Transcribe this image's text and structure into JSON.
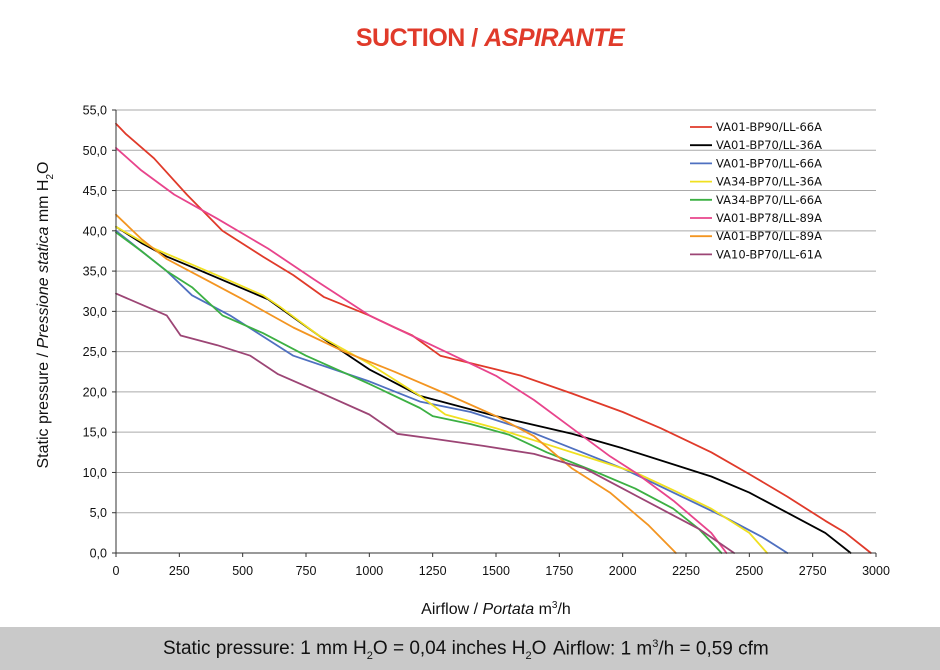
{
  "title": {
    "main": "SUCTION",
    "sep": " / ",
    "italic": "ASPIRANTE"
  },
  "colors": {
    "title": "#e03a2a",
    "footer_bg": "#c9c9c9",
    "grid": "#aaaaaa"
  },
  "footer": {
    "pressure_note": {
      "a": "Static pressure: 1 mm H",
      "b": "2",
      "c": "O = 0,04 inches H",
      "d": "2",
      "e": "O"
    },
    "airflow_note": {
      "a": "Airflow: 1 m",
      "b": "3",
      "c": "/h = 0,59 cfm"
    }
  },
  "chart_data": {
    "type": "line",
    "title": "SUCTION / ASPIRANTE",
    "xlabel": {
      "a": "Airflow",
      "sep": " / ",
      "b": "Portata",
      "c": "  m",
      "sup": "3",
      "d": "/h"
    },
    "ylabel": {
      "a": "Static pressure",
      "sep": " / ",
      "b": "Pressione statica",
      "c": "  mm  H",
      "sub": "2",
      "d": "O"
    },
    "xlim": [
      0,
      3000
    ],
    "ylim": [
      0,
      55
    ],
    "xticks": [
      0,
      250,
      500,
      750,
      1000,
      1250,
      1500,
      1750,
      2000,
      2250,
      2500,
      2750,
      3000
    ],
    "xtick_labels": [
      "0",
      "250",
      "500",
      "750",
      "1000",
      "1250",
      "1500",
      "1750",
      "2000",
      "2250",
      "2500",
      "2750",
      "3000"
    ],
    "yticks": [
      0,
      5,
      10,
      15,
      20,
      25,
      30,
      35,
      40,
      45,
      50,
      55
    ],
    "ytick_labels": [
      "0,0",
      "5,0",
      "10,0",
      "15,0",
      "20,0",
      "25,0",
      "30,0",
      "35,0",
      "40,0",
      "45,0",
      "50,0",
      "55,0"
    ],
    "grid": "horizontal",
    "legend_position": "top-right",
    "series": [
      {
        "name": "VA01-BP90/LL-66A",
        "color": "#e03a2a",
        "x": [
          0,
          40,
          150,
          280,
          420,
          580,
          700,
          820,
          1000,
          1100,
          1170,
          1280,
          1500,
          1600,
          1800,
          2000,
          2150,
          2350,
          2500,
          2650,
          2800,
          2880,
          2980
        ],
        "y": [
          53.3,
          52.0,
          49.0,
          44.5,
          40.0,
          36.8,
          34.5,
          31.8,
          29.5,
          28.0,
          27.0,
          24.5,
          22.8,
          22.0,
          19.8,
          17.5,
          15.5,
          12.5,
          9.8,
          7.0,
          4.0,
          2.5,
          0
        ]
      },
      {
        "name": "VA01-BP70/LL-36A",
        "color": "#000000",
        "x": [
          0,
          100,
          200,
          300,
          450,
          600,
          800,
          1000,
          1200,
          1500,
          1800,
          2000,
          2200,
          2350,
          2500,
          2650,
          2800,
          2900
        ],
        "y": [
          40.5,
          38.5,
          36.8,
          35.5,
          33.5,
          31.5,
          27.0,
          22.8,
          19.5,
          17.0,
          14.8,
          13.0,
          11.0,
          9.5,
          7.5,
          5.0,
          2.5,
          0
        ]
      },
      {
        "name": "VA01-BP70/LL-66A",
        "color": "#4f70c0",
        "x": [
          0,
          100,
          200,
          300,
          450,
          700,
          1000,
          1200,
          1400,
          1600,
          1800,
          2000,
          2200,
          2400,
          2550,
          2650
        ],
        "y": [
          40.0,
          37.5,
          35.0,
          32.0,
          29.5,
          24.5,
          21.3,
          18.8,
          17.5,
          15.5,
          13.0,
          10.5,
          7.5,
          4.5,
          2.0,
          0
        ]
      },
      {
        "name": "VA34-BP70/LL-36A",
        "color": "#f0e020",
        "x": [
          0,
          150,
          300,
          450,
          580,
          650,
          800,
          1000,
          1200,
          1300,
          1500,
          1700,
          1900,
          2050,
          2200,
          2350,
          2500,
          2570
        ],
        "y": [
          40.5,
          37.8,
          35.8,
          33.8,
          32.0,
          30.5,
          27.0,
          23.5,
          19.5,
          17.2,
          15.5,
          13.5,
          11.5,
          10.0,
          7.8,
          5.5,
          2.5,
          0
        ]
      },
      {
        "name": "VA34-BP70/LL-66A",
        "color": "#3cb043",
        "x": [
          0,
          100,
          200,
          300,
          420,
          580,
          750,
          1000,
          1200,
          1250,
          1400,
          1550,
          1700,
          1900,
          2050,
          2200,
          2300,
          2390
        ],
        "y": [
          39.8,
          37.5,
          35.0,
          33.0,
          29.5,
          27.3,
          24.5,
          21.0,
          18.0,
          17.0,
          16.0,
          14.7,
          12.5,
          10.0,
          8.0,
          5.5,
          3.0,
          0
        ]
      },
      {
        "name": "VA01-BP78/LL-89A",
        "color": "#e8448c",
        "x": [
          0,
          100,
          230,
          400,
          600,
          780,
          1000,
          1200,
          1400,
          1500,
          1650,
          1800,
          1950,
          2050,
          2200,
          2350,
          2410
        ],
        "y": [
          50.3,
          47.5,
          44.5,
          41.5,
          37.8,
          34.0,
          29.5,
          26.5,
          23.5,
          22.0,
          19.0,
          15.5,
          12.0,
          10.0,
          6.5,
          2.5,
          0
        ]
      },
      {
        "name": "VA01-BP70/LL-89A",
        "color": "#f39521",
        "x": [
          0,
          100,
          200,
          350,
          500,
          700,
          900,
          1100,
          1300,
          1500,
          1650,
          1800,
          1950,
          2100,
          2210
        ],
        "y": [
          42.0,
          39.0,
          36.5,
          34.0,
          31.5,
          28.0,
          25.0,
          22.5,
          19.8,
          17.0,
          14.5,
          10.5,
          7.5,
          3.5,
          0
        ]
      },
      {
        "name": "VA10-BP70/LL-61A",
        "color": "#9c4575",
        "x": [
          0,
          200,
          255,
          400,
          530,
          640,
          800,
          1000,
          1110,
          1250,
          1450,
          1650,
          1850,
          2000,
          2150,
          2300,
          2440
        ],
        "y": [
          32.2,
          29.5,
          27.0,
          25.8,
          24.5,
          22.2,
          20.0,
          17.2,
          14.8,
          14.2,
          13.3,
          12.3,
          10.5,
          8.0,
          5.5,
          3.0,
          0
        ]
      }
    ]
  }
}
